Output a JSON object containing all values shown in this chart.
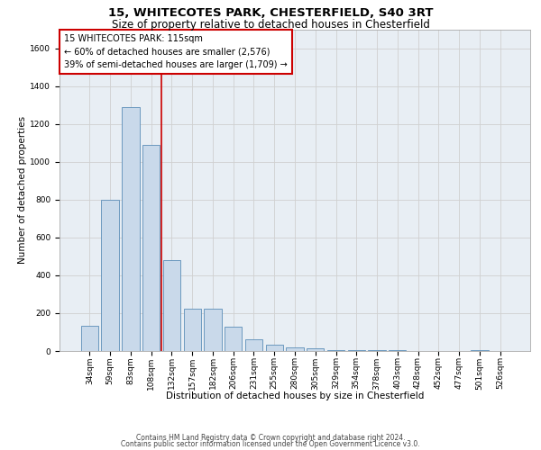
{
  "title1": "15, WHITECOTES PARK, CHESTERFIELD, S40 3RT",
  "title2": "Size of property relative to detached houses in Chesterfield",
  "xlabel": "Distribution of detached houses by size in Chesterfield",
  "ylabel": "Number of detached properties",
  "footnote1": "Contains HM Land Registry data © Crown copyright and database right 2024.",
  "footnote2": "Contains public sector information licensed under the Open Government Licence v3.0.",
  "bar_color": "#c9d9ea",
  "bar_edge_color": "#5b8db8",
  "vline_color": "#cc0000",
  "vline_x": 3.5,
  "annotation_line1": "15 WHITECOTES PARK: 115sqm",
  "annotation_line2": "← 60% of detached houses are smaller (2,576)",
  "annotation_line3": "39% of semi-detached houses are larger (1,709) →",
  "annotation_box_color": "#ffffff",
  "annotation_box_edge": "#cc0000",
  "bins": [
    "34sqm",
    "59sqm",
    "83sqm",
    "108sqm",
    "132sqm",
    "157sqm",
    "182sqm",
    "206sqm",
    "231sqm",
    "255sqm",
    "280sqm",
    "305sqm",
    "329sqm",
    "354sqm",
    "378sqm",
    "403sqm",
    "428sqm",
    "452sqm",
    "477sqm",
    "501sqm",
    "526sqm"
  ],
  "values": [
    134,
    800,
    1290,
    1090,
    480,
    225,
    225,
    130,
    60,
    35,
    20,
    15,
    5,
    5,
    5,
    5,
    0,
    0,
    0,
    5,
    0
  ],
  "ylim": [
    0,
    1700
  ],
  "yticks": [
    0,
    200,
    400,
    600,
    800,
    1000,
    1200,
    1400,
    1600
  ],
  "grid_color": "#d0d0d0",
  "bg_color": "#e8eef4",
  "title1_fontsize": 9.5,
  "title2_fontsize": 8.5,
  "xlabel_fontsize": 7.5,
  "ylabel_fontsize": 7.5,
  "tick_fontsize": 6.5,
  "annot_fontsize": 7,
  "footnote_fontsize": 5.5
}
